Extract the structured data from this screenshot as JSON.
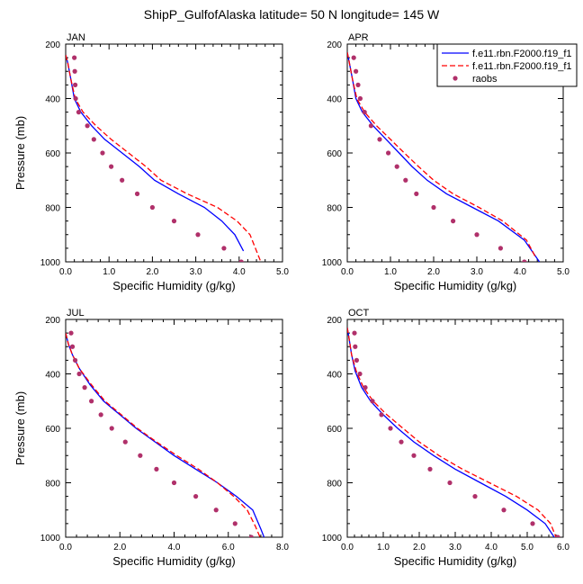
{
  "title": "ShipP_GulfofAlaska  latitude= 50 N longitude= 145 W",
  "colors": {
    "model1": "#0000ff",
    "model2": "#ff0000",
    "obs": "#b0306a"
  },
  "legend": {
    "entries": [
      {
        "label": "f.e11.rbn.F2000.f19_f1",
        "style": "solid",
        "color": "#0000ff"
      },
      {
        "label": "f.e11.rbn.F2000.f19_f1",
        "style": "dashed",
        "color": "#ff0000"
      },
      {
        "label": "raobs",
        "style": "marker",
        "color": "#b0306a"
      }
    ]
  },
  "chart_data": [
    {
      "type": "line",
      "title": "JAN",
      "xlabel": "Specific Humidity (g/kg)",
      "ylabel": "Pressure (mb)",
      "xlim": [
        0,
        5
      ],
      "ylim": [
        1000,
        200
      ],
      "xticks": [
        "0.0",
        "1.0",
        "2.0",
        "3.0",
        "4.0",
        "5.0"
      ],
      "yticks": [
        "200",
        "400",
        "600",
        "800",
        "1000"
      ],
      "series": [
        {
          "name": "f.e11.rbn.F2000.f19_f1",
          "style": "solid",
          "x": [
            0.0,
            0.05,
            0.12,
            0.2,
            0.35,
            0.6,
            0.9,
            1.3,
            1.7,
            2.05,
            2.6,
            3.2,
            3.6,
            3.9,
            4.1
          ],
          "y": [
            240,
            270,
            330,
            400,
            450,
            500,
            550,
            600,
            650,
            700,
            750,
            800,
            850,
            900,
            960
          ]
        },
        {
          "name": "f.e11.rbn.F2000.f19_f1",
          "style": "dashed",
          "x": [
            0.0,
            0.05,
            0.12,
            0.22,
            0.4,
            0.7,
            1.05,
            1.45,
            1.85,
            2.2,
            2.8,
            3.5,
            3.95,
            4.25,
            4.5
          ],
          "y": [
            240,
            270,
            330,
            400,
            450,
            500,
            550,
            600,
            650,
            700,
            750,
            800,
            850,
            900,
            1000
          ]
        },
        {
          "name": "raobs",
          "style": "marker",
          "x": [
            0.2,
            0.21,
            0.22,
            0.23,
            0.3,
            0.5,
            0.65,
            0.85,
            1.05,
            1.3,
            1.65,
            2.0,
            2.5,
            3.05,
            3.65,
            4.05
          ],
          "y": [
            250,
            300,
            350,
            400,
            450,
            500,
            550,
            600,
            650,
            700,
            750,
            800,
            850,
            900,
            950,
            1000
          ]
        }
      ]
    },
    {
      "type": "line",
      "title": "APR",
      "xlabel": "Specific Humidity (g/kg)",
      "ylabel": "",
      "xlim": [
        0,
        5
      ],
      "ylim": [
        1000,
        200
      ],
      "xticks": [
        "0.0",
        "1.0",
        "2.0",
        "3.0",
        "4.0",
        "5.0"
      ],
      "yticks": [
        "200",
        "400",
        "600",
        "800",
        "1000"
      ],
      "series": [
        {
          "name": "f.e11.rbn.F2000.f19_f1",
          "style": "solid",
          "x": [
            0.0,
            0.05,
            0.12,
            0.2,
            0.35,
            0.6,
            0.9,
            1.2,
            1.5,
            1.85,
            2.3,
            2.9,
            3.5,
            4.1,
            4.45
          ],
          "y": [
            230,
            270,
            330,
            400,
            450,
            500,
            550,
            600,
            650,
            700,
            750,
            800,
            850,
            920,
            1000
          ]
        },
        {
          "name": "f.e11.rbn.F2000.f19_f1",
          "style": "dashed",
          "x": [
            0.0,
            0.05,
            0.12,
            0.22,
            0.4,
            0.68,
            1.0,
            1.32,
            1.65,
            2.0,
            2.45,
            3.05,
            3.6,
            4.15,
            4.35
          ],
          "y": [
            230,
            270,
            330,
            400,
            450,
            500,
            550,
            600,
            650,
            700,
            750,
            800,
            850,
            920,
            980
          ]
        },
        {
          "name": "raobs",
          "style": "marker",
          "x": [
            0.15,
            0.2,
            0.25,
            0.3,
            0.4,
            0.55,
            0.75,
            0.95,
            1.15,
            1.35,
            1.6,
            2.0,
            2.45,
            3.0,
            3.55,
            4.1
          ],
          "y": [
            250,
            300,
            350,
            400,
            450,
            500,
            550,
            600,
            650,
            700,
            750,
            800,
            850,
            900,
            950,
            1000
          ]
        }
      ]
    },
    {
      "type": "line",
      "title": "JUL",
      "xlabel": "Specific Humidity (g/kg)",
      "ylabel": "Pressure (mb)",
      "xlim": [
        0,
        8
      ],
      "ylim": [
        1000,
        200
      ],
      "xticks": [
        "0.0",
        "2.0",
        "4.0",
        "6.0",
        "8.0"
      ],
      "yticks": [
        "200",
        "400",
        "600",
        "800",
        "1000"
      ],
      "series": [
        {
          "name": "f.e11.rbn.F2000.f19_f1",
          "style": "solid",
          "x": [
            0.0,
            0.1,
            0.25,
            0.5,
            0.9,
            1.4,
            2.0,
            2.6,
            3.3,
            4.0,
            4.8,
            5.6,
            6.3,
            6.9,
            7.2,
            7.4
          ],
          "y": [
            250,
            290,
            330,
            380,
            440,
            500,
            550,
            600,
            650,
            700,
            750,
            800,
            850,
            900,
            970,
            1020
          ]
        },
        {
          "name": "f.e11.rbn.F2000.f19_f1",
          "style": "dashed",
          "x": [
            0.0,
            0.1,
            0.25,
            0.5,
            0.95,
            1.45,
            2.05,
            2.65,
            3.35,
            4.1,
            4.9,
            5.6,
            6.2,
            6.7,
            7.0,
            7.3
          ],
          "y": [
            250,
            290,
            330,
            380,
            440,
            500,
            550,
            600,
            650,
            700,
            750,
            800,
            850,
            900,
            960,
            1030
          ]
        },
        {
          "name": "raobs",
          "style": "marker",
          "x": [
            0.2,
            0.25,
            0.35,
            0.5,
            0.7,
            0.95,
            1.3,
            1.7,
            2.2,
            2.75,
            3.35,
            4.0,
            4.8,
            5.55,
            6.25,
            6.85
          ],
          "y": [
            250,
            300,
            350,
            400,
            450,
            500,
            550,
            600,
            650,
            700,
            750,
            800,
            850,
            900,
            950,
            1000
          ]
        }
      ]
    },
    {
      "type": "line",
      "title": "OCT",
      "xlabel": "Specific Humidity (g/kg)",
      "ylabel": "",
      "xlim": [
        0,
        6
      ],
      "ylim": [
        1000,
        200
      ],
      "xticks": [
        "0.0",
        "1.0",
        "2.0",
        "3.0",
        "4.0",
        "5.0",
        "6.0"
      ],
      "yticks": [
        "200",
        "400",
        "600",
        "800",
        "1000"
      ],
      "series": [
        {
          "name": "f.e11.rbn.F2000.f19_f1",
          "style": "solid",
          "x": [
            0.0,
            0.05,
            0.12,
            0.22,
            0.4,
            0.65,
            1.0,
            1.4,
            1.85,
            2.4,
            3.0,
            3.7,
            4.4,
            5.0,
            5.5,
            5.75
          ],
          "y": [
            230,
            270,
            330,
            390,
            450,
            500,
            550,
            600,
            650,
            700,
            750,
            800,
            850,
            900,
            950,
            1000
          ]
        },
        {
          "name": "f.e11.rbn.F2000.f19_f1",
          "style": "dashed",
          "x": [
            0.0,
            0.05,
            0.12,
            0.25,
            0.45,
            0.72,
            1.1,
            1.55,
            2.0,
            2.55,
            3.2,
            3.95,
            4.7,
            5.3,
            5.65,
            5.8
          ],
          "y": [
            230,
            270,
            330,
            390,
            450,
            500,
            550,
            600,
            650,
            700,
            750,
            800,
            850,
            900,
            950,
            1000
          ]
        },
        {
          "name": "raobs",
          "style": "marker",
          "x": [
            0.2,
            0.22,
            0.26,
            0.35,
            0.5,
            0.7,
            0.95,
            1.2,
            1.5,
            1.85,
            2.3,
            2.85,
            3.55,
            4.35,
            5.15,
            5.85
          ],
          "y": [
            250,
            300,
            350,
            400,
            450,
            500,
            550,
            600,
            650,
            700,
            750,
            800,
            850,
            900,
            950,
            1000
          ]
        }
      ]
    }
  ]
}
